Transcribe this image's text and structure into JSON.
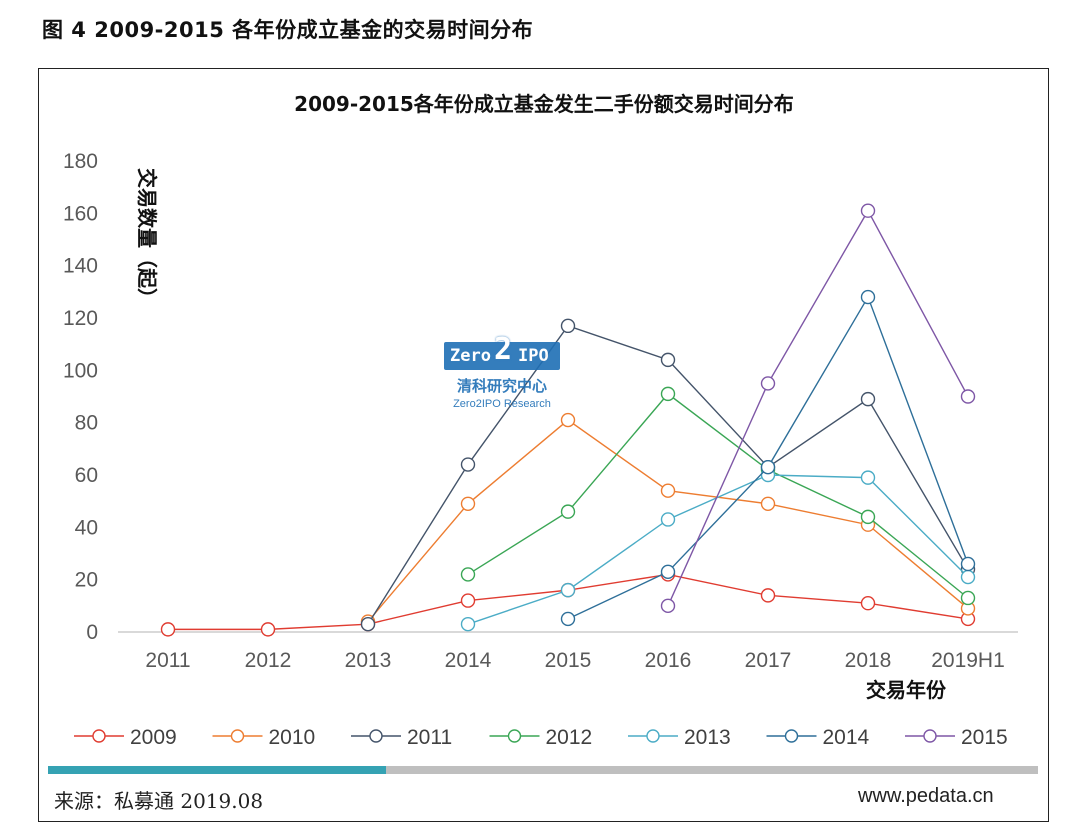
{
  "figure_caption": "图 4 2009-2015 各年份成立基金的交易时间分布",
  "footer": {
    "source": "来源：私募通 2019.08",
    "site": "www.pedata.cn"
  },
  "watermark": {
    "logo_left": "Zero",
    "logo_mid": "2",
    "logo_right": "IPO",
    "cn": "清科研究中心",
    "en": "Zero2IPO Research"
  },
  "chart_data": {
    "type": "line",
    "title": "2009-2015各年份成立基金发生二手份额交易时间分布",
    "xlabel": "交易年份",
    "ylabel": "交易数量（起）",
    "ylim": [
      0,
      180
    ],
    "yticks": [
      0,
      20,
      40,
      60,
      80,
      100,
      120,
      140,
      160,
      180
    ],
    "categories": [
      "2011",
      "2012",
      "2013",
      "2014",
      "2015",
      "2016",
      "2017",
      "2018",
      "2019H1"
    ],
    "legend_position": "bottom",
    "grid": false,
    "series": [
      {
        "name": "2009",
        "color": "#e03c31",
        "values": [
          1,
          1,
          3,
          12,
          16,
          22,
          14,
          11,
          5
        ]
      },
      {
        "name": "2010",
        "color": "#ed7d31",
        "values": [
          null,
          null,
          4,
          49,
          81,
          54,
          49,
          41,
          9
        ]
      },
      {
        "name": "2011",
        "color": "#44546a",
        "values": [
          null,
          null,
          3,
          64,
          117,
          104,
          63,
          89,
          24
        ]
      },
      {
        "name": "2012",
        "color": "#3aa655",
        "values": [
          null,
          null,
          null,
          22,
          46,
          91,
          62,
          44,
          13
        ]
      },
      {
        "name": "2013",
        "color": "#4bacc6",
        "values": [
          null,
          null,
          null,
          3,
          16,
          43,
          60,
          59,
          21
        ]
      },
      {
        "name": "2014",
        "color": "#2e6f99",
        "values": [
          null,
          null,
          null,
          null,
          5,
          23,
          63,
          128,
          26
        ]
      },
      {
        "name": "2015",
        "color": "#7e57a6",
        "values": [
          null,
          null,
          null,
          null,
          null,
          10,
          95,
          161,
          90
        ]
      }
    ]
  }
}
